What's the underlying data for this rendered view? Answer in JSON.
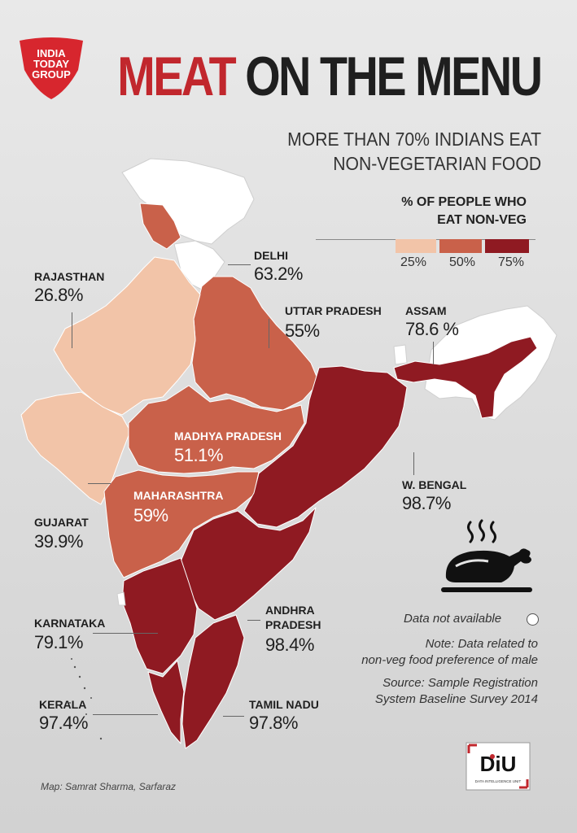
{
  "brand": {
    "logo_lines": [
      "INDIA",
      "TODAY",
      "GROUP"
    ],
    "diu_logo": "DiU",
    "diu_tagline": "DATA INTELLIGENCE UNIT"
  },
  "header": {
    "title_part1": "MEAT",
    "title_part2": "ON THE MENU",
    "subtitle_line1": "MORE THAN 70% INDIANS EAT",
    "subtitle_line2": "NON-VEGETARIAN FOOD"
  },
  "legend": {
    "title_line1": "% OF PEOPLE WHO",
    "title_line2": "EAT NON-VEG",
    "ticks": [
      "25%",
      "50%",
      "75%"
    ],
    "colors": {
      "low": "#f2c4a8",
      "mid": "#c9614a",
      "high": "#8f1a22"
    }
  },
  "states": {
    "rajasthan": {
      "name": "RAJASTHAN",
      "value": "26.8%"
    },
    "delhi": {
      "name": "DELHI",
      "value": "63.2%"
    },
    "uttar_pradesh": {
      "name": "UTTAR PRADESH",
      "value": "55%"
    },
    "assam": {
      "name": "ASSAM",
      "value": "78.6 %"
    },
    "madhya_pradesh": {
      "name": "MADHYA PRADESH",
      "value": "51.1%"
    },
    "maharashtra": {
      "name": "MAHARASHTRA",
      "value": "59%"
    },
    "w_bengal": {
      "name": "W. BENGAL",
      "value": "98.7%"
    },
    "gujarat": {
      "name": "GUJARAT",
      "value": "39.9%"
    },
    "karnataka": {
      "name": "KARNATAKA",
      "value": "79.1%"
    },
    "andhra_pradesh": {
      "name_line1": "ANDHRA",
      "name_line2": "PRADESH",
      "value": "98.4%"
    },
    "kerala": {
      "name": "KERALA",
      "value": "97.4%"
    },
    "tamil_nadu": {
      "name": "TAMIL NADU",
      "value": "97.8%"
    }
  },
  "notes": {
    "data_not_available": "Data not available",
    "note_line1": "Note: Data related to",
    "note_line2": "non-veg food preference of male",
    "source_line1": "Source: Sample Registration",
    "source_line2": "System Baseline Survey 2014",
    "credit": "Map: Samrat Sharma, Sarfaraz"
  },
  "icons": {
    "food": "roast-chicken-icon",
    "na_marker": "white-circle-icon"
  }
}
